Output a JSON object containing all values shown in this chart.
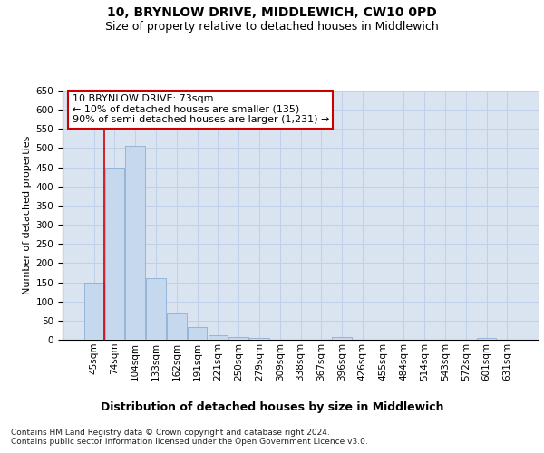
{
  "title": "10, BRYNLOW DRIVE, MIDDLEWICH, CW10 0PD",
  "subtitle": "Size of property relative to detached houses in Middlewich",
  "xlabel": "Distribution of detached houses by size in Middlewich",
  "ylabel": "Number of detached properties",
  "categories": [
    "45sqm",
    "74sqm",
    "104sqm",
    "133sqm",
    "162sqm",
    "191sqm",
    "221sqm",
    "250sqm",
    "279sqm",
    "309sqm",
    "338sqm",
    "367sqm",
    "396sqm",
    "426sqm",
    "455sqm",
    "484sqm",
    "514sqm",
    "543sqm",
    "572sqm",
    "601sqm",
    "631sqm"
  ],
  "values": [
    150,
    450,
    507,
    160,
    68,
    33,
    13,
    7,
    4,
    0,
    0,
    0,
    8,
    0,
    0,
    0,
    0,
    0,
    0,
    5,
    0
  ],
  "bar_color": "#c5d8ee",
  "bar_edge_color": "#8aafd4",
  "grid_color": "#c0d0e8",
  "background_color": "#dae4f0",
  "vline_x_index": 0.5,
  "vline_color": "#cc0000",
  "annotation_text": "10 BRYNLOW DRIVE: 73sqm\n← 10% of detached houses are smaller (135)\n90% of semi-detached houses are larger (1,231) →",
  "annotation_box_facecolor": "#ffffff",
  "annotation_box_edgecolor": "#cc0000",
  "ylim": [
    0,
    650
  ],
  "yticks": [
    0,
    50,
    100,
    150,
    200,
    250,
    300,
    350,
    400,
    450,
    500,
    550,
    600,
    650
  ],
  "footer": "Contains HM Land Registry data © Crown copyright and database right 2024.\nContains public sector information licensed under the Open Government Licence v3.0.",
  "title_fontsize": 10,
  "subtitle_fontsize": 9,
  "ylabel_fontsize": 8,
  "xlabel_fontsize": 9,
  "tick_fontsize": 7.5,
  "annotation_fontsize": 8,
  "footer_fontsize": 6.5
}
